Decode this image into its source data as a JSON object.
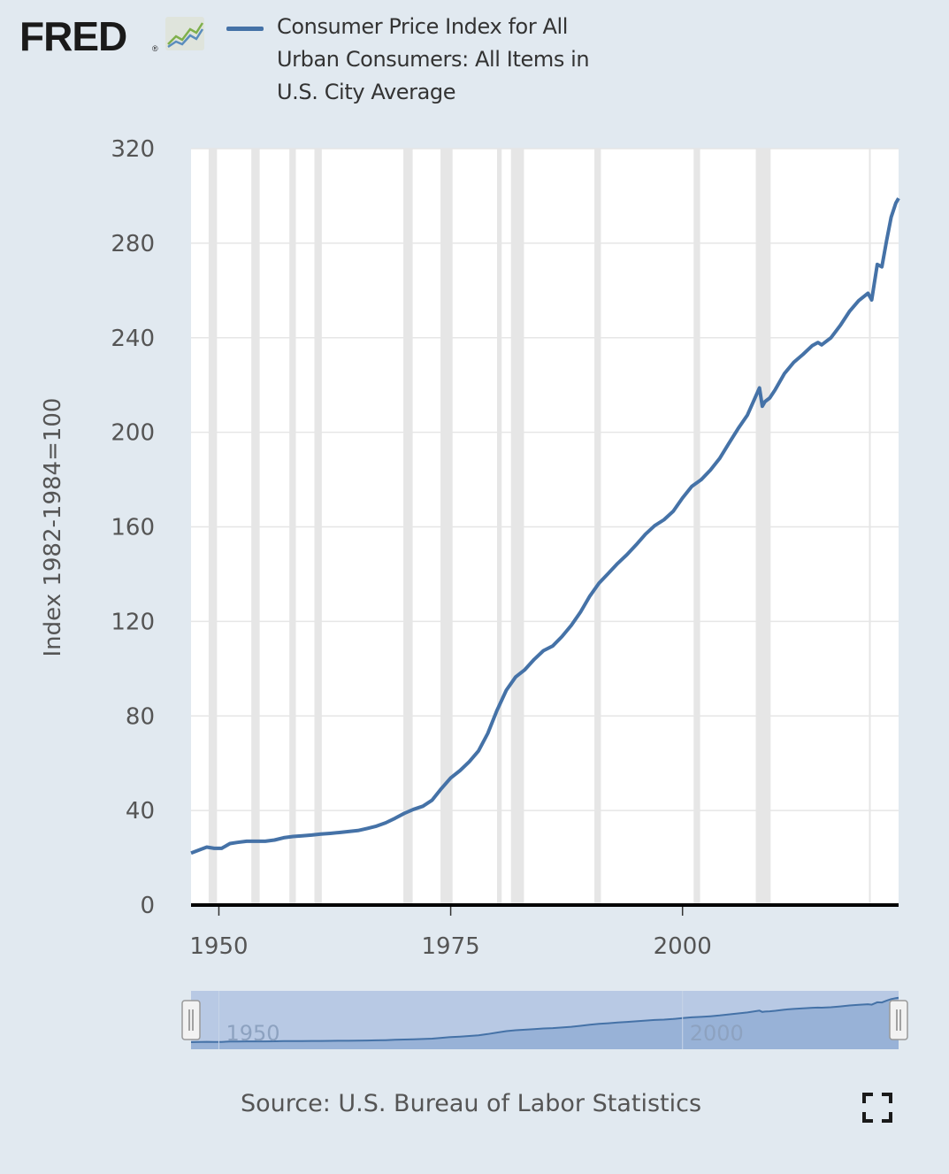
{
  "header": {
    "logo_text": "FRED",
    "logo_reg": "®",
    "logo_icon": "line-chart-icon",
    "legend_label": "Consumer Price Index for All Urban Consumers: All Items in U.S. City Average"
  },
  "source": "Source: U.S. Bureau of Labor Statistics",
  "fullscreen_icon": "fullscreen-icon",
  "colors": {
    "background": "#e1e9f0",
    "plot_background": "#ffffff",
    "series": "#4572a7",
    "recession_band": "#e6e6e6",
    "navigator_fill": "#b8c9e4"
  },
  "chart_data": {
    "type": "line",
    "title": "",
    "xlabel": "",
    "ylabel": "Index 1982-1984=100",
    "xlim": [
      1947,
      2023.3
    ],
    "ylim": [
      0,
      320
    ],
    "yticks": [
      0,
      40,
      80,
      120,
      160,
      200,
      240,
      280,
      320
    ],
    "xticks": [
      1950,
      1975,
      2000
    ],
    "grid": true,
    "legend": "top",
    "recessions": [
      [
        1948.9,
        1949.8
      ],
      [
        1953.5,
        1954.4
      ],
      [
        1957.6,
        1958.3
      ],
      [
        1960.3,
        1961.1
      ],
      [
        1969.9,
        1970.9
      ],
      [
        1973.9,
        1975.2
      ],
      [
        1980.0,
        1980.5
      ],
      [
        1981.5,
        1982.9
      ],
      [
        1990.5,
        1991.2
      ],
      [
        2001.2,
        2001.9
      ],
      [
        2007.9,
        2009.5
      ],
      [
        2020.1,
        2020.3
      ]
    ],
    "series": [
      {
        "name": "Consumer Price Index for All Urban Consumers: All Items in U.S. City Average",
        "x": [
          1947,
          1948,
          1948.7,
          1949.5,
          1950.3,
          1951.2,
          1952,
          1953,
          1954,
          1955,
          1956,
          1957,
          1958,
          1959,
          1960,
          1961,
          1962,
          1963,
          1964,
          1965,
          1966,
          1967,
          1968,
          1969,
          1970,
          1971,
          1972,
          1973,
          1974,
          1975,
          1976,
          1977,
          1978,
          1979,
          1980,
          1981,
          1982,
          1983,
          1984,
          1985,
          1986,
          1987,
          1988,
          1989,
          1990,
          1991,
          1992,
          1993,
          1994,
          1995,
          1996,
          1997,
          1998,
          1999,
          2000,
          2001,
          2002,
          2003,
          2004,
          2005,
          2006,
          2007,
          2008.3,
          2008.6,
          2008.9,
          2009.4,
          2010,
          2011,
          2012,
          2013,
          2014,
          2014.6,
          2015,
          2016,
          2017,
          2018,
          2019,
          2020,
          2020.4,
          2021,
          2021.5,
          2022,
          2022.5,
          2023,
          2023.3
        ],
        "values": [
          22,
          23.5,
          24.5,
          24,
          24,
          26,
          26.5,
          27,
          27,
          27,
          27.5,
          28.5,
          29,
          29.3,
          29.6,
          30,
          30.3,
          30.7,
          31.1,
          31.5,
          32.4,
          33.4,
          34.8,
          36.7,
          38.8,
          40.5,
          41.8,
          44.4,
          49.3,
          53.8,
          56.9,
          60.6,
          65.2,
          72.6,
          82.4,
          90.9,
          96.5,
          99.6,
          103.9,
          107.6,
          109.6,
          113.6,
          118.3,
          124.0,
          130.7,
          136.2,
          140.3,
          144.5,
          148.2,
          152.4,
          156.9,
          160.5,
          163.0,
          166.6,
          172.2,
          177.1,
          179.9,
          184.0,
          188.9,
          195.3,
          201.6,
          207.3,
          218.8,
          211.0,
          213.0,
          214.5,
          218.1,
          224.9,
          229.6,
          233.0,
          236.7,
          238.0,
          237.0,
          240.0,
          245.1,
          251.1,
          255.7,
          258.8,
          256.0,
          271.0,
          270.0,
          281.0,
          291.0,
          297.0,
          299.0
        ]
      }
    ]
  }
}
